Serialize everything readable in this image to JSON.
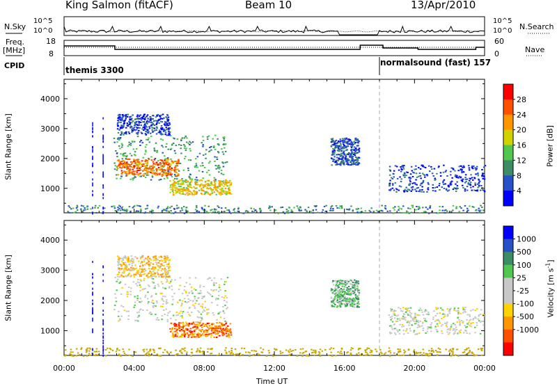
{
  "header": {
    "station": "King Salmon (fitACF)",
    "beam": "Beam 10",
    "date": "13/Apr/2010"
  },
  "top_panels": {
    "nsky_label": "N.Sky",
    "nsky_hi": "10^5",
    "nsky_lo": "10^0",
    "nsearch_label": "N.Search",
    "nsearch_hi": "10^5",
    "nsearch_lo": "10^0",
    "freq_label": "Freq.",
    "freq_unit": "[MHz]",
    "freq_hi": "18",
    "freq_lo": "8",
    "nave_label": "Nave",
    "nave_hi": "60",
    "nave_lo": "0",
    "cpid_label": "CPID",
    "cpid_1": "themis 3300",
    "cpid_2": "normalsound (fast) 157"
  },
  "colors": {
    "power": [
      "#0000ff",
      "#2850c8",
      "#3c8c64",
      "#50c850",
      "#d2d200",
      "#ff9600",
      "#ff5000",
      "#ff0000"
    ],
    "velocity": [
      "#ff0000",
      "#ff5000",
      "#ff9600",
      "#ffd200",
      "#c8c8c8",
      "#c8c8c8",
      "#50c850",
      "#3c8c64",
      "#2850c8",
      "#0000ff"
    ],
    "ground": "#c8a800"
  },
  "chart_data": [
    {
      "type": "heatmap",
      "title": "Power",
      "xlabel": "Time UT",
      "ylabel": "Slant Range [km]",
      "x_ticks": [
        "00:00",
        "04:00",
        "08:00",
        "12:00",
        "16:00",
        "20:00",
        "00:00"
      ],
      "x_range_hours": [
        0,
        24
      ],
      "y_ticks": [
        1000,
        2000,
        3000,
        4000
      ],
      "y_range_km": [
        180,
        4650
      ],
      "colorbar": {
        "label": "Power [dB]",
        "ticks": [
          "4",
          "8",
          "12",
          "16",
          "20",
          "24",
          "28"
        ]
      },
      "regions": [
        {
          "t": [
            2.8,
            9.3
          ],
          "r": [
            1300,
            2800
          ],
          "level": 0.35
        },
        {
          "t": [
            3.0,
            6.5
          ],
          "r": [
            1450,
            2000
          ],
          "level": 0.75
        },
        {
          "t": [
            3.0,
            6.0
          ],
          "r": [
            2800,
            3500
          ],
          "level": 0.15
        },
        {
          "t": [
            6.0,
            9.5
          ],
          "r": [
            800,
            1300
          ],
          "level": 0.6
        },
        {
          "t": [
            15.2,
            16.8
          ],
          "r": [
            1800,
            2700
          ],
          "level": 0.2
        },
        {
          "t": [
            18.5,
            24.0
          ],
          "r": [
            900,
            1800
          ],
          "level": 0.15
        },
        {
          "t": [
            0.0,
            24.0
          ],
          "r": [
            180,
            450
          ],
          "level": 0.3
        }
      ]
    },
    {
      "type": "heatmap",
      "title": "Velocity",
      "xlabel": "Time UT",
      "ylabel": "Slant Range [km]",
      "x_ticks": [
        "00:00",
        "04:00",
        "08:00",
        "12:00",
        "16:00",
        "20:00",
        "00:00"
      ],
      "x_range_hours": [
        0,
        24
      ],
      "y_ticks": [
        1000,
        2000,
        3000,
        4000
      ],
      "y_range_km": [
        180,
        4650
      ],
      "colorbar": {
        "label": "Velocity [m s^-1]",
        "ticks": [
          "1000",
          "500",
          "100",
          "25",
          "-25",
          "-100",
          "-500",
          "-1000"
        ]
      },
      "regions": [
        {
          "t": [
            2.8,
            9.3
          ],
          "r": [
            1300,
            2800
          ],
          "level": 0.5
        },
        {
          "t": [
            3.0,
            6.0
          ],
          "r": [
            2800,
            3500
          ],
          "level": 0.35
        },
        {
          "t": [
            6.0,
            9.5
          ],
          "r": [
            800,
            1300
          ],
          "level": 0.2
        },
        {
          "t": [
            15.2,
            16.8
          ],
          "r": [
            1800,
            2700
          ],
          "level": 0.65
        },
        {
          "t": [
            18.5,
            24.0
          ],
          "r": [
            900,
            1800
          ],
          "level": 0.5
        },
        {
          "t": [
            0.0,
            24.0
          ],
          "r": [
            180,
            450
          ],
          "level": 0.3
        }
      ]
    }
  ]
}
